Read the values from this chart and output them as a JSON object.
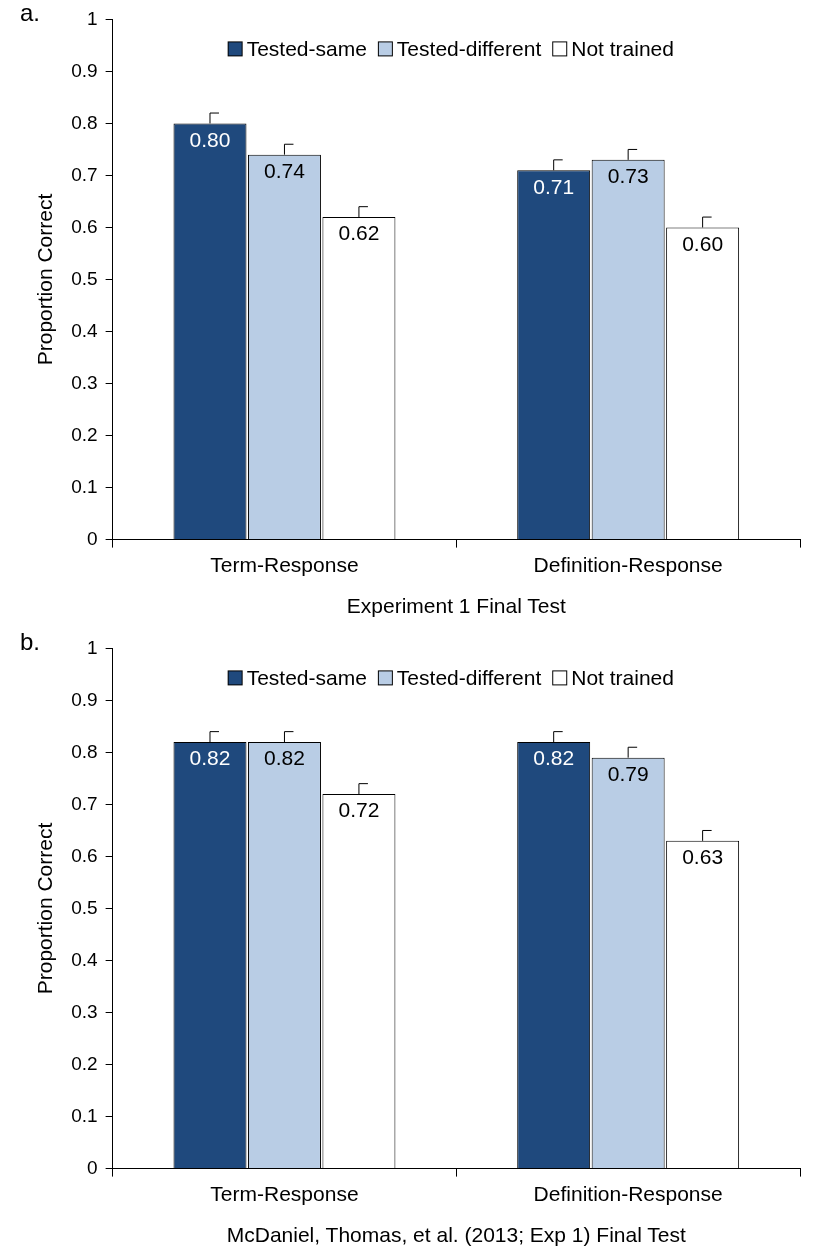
{
  "chart_data": [
    {
      "type": "bar",
      "xlabel": "Experiment 1 Final Test",
      "ylabel": "Proportion Correct",
      "annotations": [
        "a."
      ],
      "categories": [
        "Term-Response",
        "Definition-Response"
      ],
      "series": [
        {
          "name": "Tested-same",
          "color": "#1f497d",
          "values": [
            0.8,
            0.71
          ],
          "errors": [
            0.02,
            0.02
          ],
          "value_labels": [
            "0.80",
            "0.71"
          ]
        },
        {
          "name": "Tested-different",
          "color": "#b9cde5",
          "values": [
            0.74,
            0.73
          ],
          "errors": [
            0.02,
            0.02
          ],
          "value_labels": [
            "0.74",
            "0.73"
          ]
        },
        {
          "name": "Not trained",
          "color": "#ffffff",
          "values": [
            0.62,
            0.6
          ],
          "errors": [
            0.02,
            0.02
          ],
          "value_labels": [
            "0.62",
            "0.60"
          ]
        }
      ],
      "ylim": [
        0,
        1
      ],
      "yticks": [
        0,
        0.1,
        0.2,
        0.3,
        0.4,
        0.5,
        0.6,
        0.7,
        0.8,
        0.9,
        1
      ],
      "grid": false,
      "legend": "top"
    },
    {
      "type": "bar",
      "xlabel": "McDaniel, Thomas, et al. (2013; Exp 1) Final Test",
      "ylabel": "Proportion Correct",
      "annotations": [
        "b."
      ],
      "categories": [
        "Term-Response",
        "Definition-Response"
      ],
      "series": [
        {
          "name": "Tested-same",
          "color": "#1f497d",
          "values": [
            0.82,
            0.82
          ],
          "errors": [
            0.02,
            0.02
          ],
          "value_labels": [
            "0.82",
            "0.82"
          ]
        },
        {
          "name": "Tested-different",
          "color": "#b9cde5",
          "values": [
            0.82,
            0.79
          ],
          "errors": [
            0.02,
            0.02
          ],
          "value_labels": [
            "0.82",
            "0.79"
          ]
        },
        {
          "name": "Not trained",
          "color": "#ffffff",
          "values": [
            0.72,
            0.63
          ],
          "errors": [
            0.02,
            0.02
          ],
          "value_labels": [
            "0.72",
            "0.63"
          ]
        }
      ],
      "ylim": [
        0,
        1
      ],
      "yticks": [
        0,
        0.1,
        0.2,
        0.3,
        0.4,
        0.5,
        0.6,
        0.7,
        0.8,
        0.9,
        1
      ],
      "grid": false,
      "legend": "top"
    }
  ]
}
